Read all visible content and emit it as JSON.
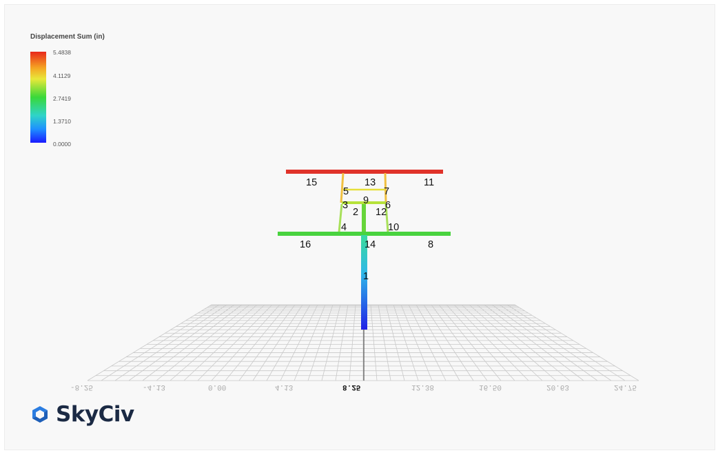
{
  "legend": {
    "title": "Displacement Sum (in)",
    "ticks": [
      "5.4838",
      "4.1129",
      "2.7419",
      "1.3710",
      "0.0000"
    ],
    "colors": [
      "#e8281b",
      "#f5a623",
      "#e8e83a",
      "#39d839",
      "#2fd4c8",
      "#1e90ff",
      "#1a1aff"
    ]
  },
  "members": {
    "labels": [
      "15",
      "13",
      "11",
      "5",
      "7",
      "9",
      "3",
      "6",
      "2",
      "12",
      "4",
      "10",
      "16",
      "14",
      "8",
      "1"
    ]
  },
  "axis": {
    "x_ticks": [
      "-8.25",
      "-4.13",
      "0.00",
      "4.13",
      "8.25",
      "12.38",
      "16.50",
      "20.63",
      "24.75"
    ],
    "highlight_tick": "8.25"
  },
  "brand": {
    "name": "SkyCiv",
    "icon": "skyciv-logo-icon",
    "color": "#2196f3"
  }
}
